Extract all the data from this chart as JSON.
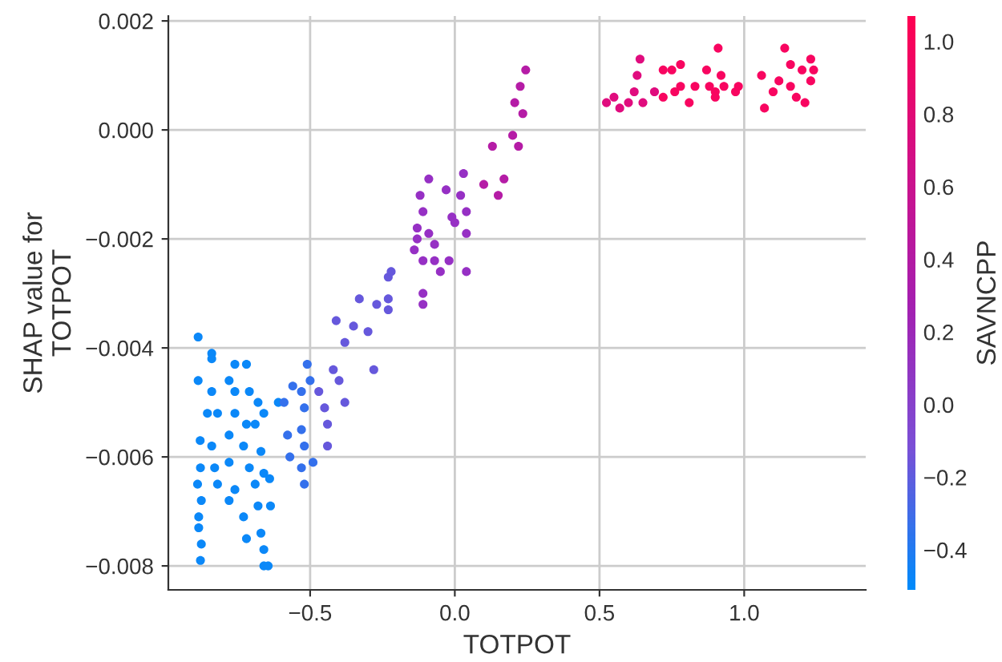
{
  "chart_data": {
    "type": "scatter",
    "xlabel": "TOTPOT",
    "ylabel": "SHAP value for\nTOTPOT",
    "clabel": "SAVNCPP",
    "xlim": [
      -0.99,
      1.42
    ],
    "ylim": [
      -0.00844,
      0.00209
    ],
    "xticks": [
      {
        "value": -0.5,
        "label": "−0.5"
      },
      {
        "value": 0.0,
        "label": "0.0"
      },
      {
        "value": 0.5,
        "label": "0.5"
      },
      {
        "value": 1.0,
        "label": "1.0"
      }
    ],
    "yticks": [
      {
        "value": -0.008,
        "label": "−0.008"
      },
      {
        "value": -0.006,
        "label": "−0.006"
      },
      {
        "value": -0.004,
        "label": "−0.004"
      },
      {
        "value": -0.002,
        "label": "−0.002"
      },
      {
        "value": 0.0,
        "label": "0.000"
      },
      {
        "value": 0.002,
        "label": "0.002"
      }
    ],
    "clim": [
      -0.51,
      1.07
    ],
    "cticks": [
      {
        "value": -0.4,
        "label": "−0.4"
      },
      {
        "value": -0.2,
        "label": "−0.2"
      },
      {
        "value": 0.0,
        "label": "0.0"
      },
      {
        "value": 0.2,
        "label": "0.2"
      },
      {
        "value": 0.4,
        "label": "0.4"
      },
      {
        "value": 0.6,
        "label": "0.6"
      },
      {
        "value": 0.8,
        "label": "0.8"
      },
      {
        "value": 1.0,
        "label": "1.0"
      }
    ],
    "grid": true,
    "marker": "circle",
    "series": [
      {
        "color": "#0b88f8",
        "x": [
          -0.887,
          -0.84,
          -0.84,
          -0.887,
          -0.76,
          -0.72,
          -0.78,
          -0.84,
          -0.76,
          -0.71,
          -0.68,
          -0.66,
          -0.61,
          -0.855,
          -0.82,
          -0.76,
          -0.72,
          -0.69,
          -0.88,
          -0.84,
          -0.78,
          -0.73,
          -0.67,
          -0.879,
          -0.83,
          -0.78,
          -0.71,
          -0.66,
          -0.889,
          -0.82,
          -0.76,
          -0.69,
          -0.64,
          -0.876,
          -0.885,
          -0.885,
          -0.876,
          -0.879,
          -0.73,
          -0.72,
          -0.67,
          -0.66,
          -0.66,
          -0.645,
          -0.637,
          -0.68,
          -0.78
        ],
        "values": [
          -0.0038,
          -0.0041,
          -0.0042,
          -0.0046,
          -0.0043,
          -0.0043,
          -0.0046,
          -0.0048,
          -0.0048,
          -0.0048,
          -0.005,
          -0.0052,
          -0.005,
          -0.0052,
          -0.0052,
          -0.0052,
          -0.0054,
          -0.0054,
          -0.0057,
          -0.0058,
          -0.0056,
          -0.0058,
          -0.0059,
          -0.0062,
          -0.0062,
          -0.0061,
          -0.0062,
          -0.0063,
          -0.0065,
          -0.0065,
          -0.0066,
          -0.0065,
          -0.0064,
          -0.0068,
          -0.0071,
          -0.0073,
          -0.0076,
          -0.0079,
          -0.0071,
          -0.0075,
          -0.0074,
          -0.0077,
          -0.008,
          -0.008,
          -0.0069,
          -0.0069,
          -0.0068
        ]
      },
      {
        "color": "#3470ec",
        "x": [
          -0.578,
          -0.57,
          -0.59,
          -0.56,
          -0.53,
          -0.52,
          -0.51,
          -0.53,
          -0.52,
          -0.53,
          -0.52,
          -0.49,
          -0.5
        ],
        "values": [
          -0.0056,
          -0.006,
          -0.005,
          -0.0047,
          -0.0048,
          -0.0051,
          -0.0043,
          -0.0055,
          -0.0058,
          -0.0062,
          -0.0065,
          -0.0061,
          -0.0046
        ]
      },
      {
        "color": "#6658dc",
        "x": [
          -0.47,
          -0.45,
          -0.44,
          -0.44,
          -0.42,
          -0.4,
          -0.38,
          -0.41,
          -0.38,
          -0.35,
          -0.3,
          -0.28,
          -0.27,
          -0.33,
          -0.23,
          -0.22,
          -0.23,
          -0.23
        ],
        "values": [
          -0.0048,
          -0.0051,
          -0.0054,
          -0.0058,
          -0.0044,
          -0.0046,
          -0.005,
          -0.0035,
          -0.0039,
          -0.0036,
          -0.0037,
          -0.0044,
          -0.0032,
          -0.0031,
          -0.0027,
          -0.0026,
          -0.0031,
          -0.0033
        ]
      },
      {
        "color": "#b51ca6",
        "x": [
          0.245,
          0.226,
          0.207,
          0.235,
          0.2,
          0.22,
          0.13,
          0.17,
          0.15,
          0.1
        ],
        "values": [
          0.0011,
          0.0008,
          0.0005,
          0.0003,
          -0.0001,
          -0.0003,
          -0.0003,
          -0.0009,
          -0.0012,
          -0.001
        ]
      },
      {
        "color": "#9630c4",
        "x": [
          0.03,
          0.02,
          0.04,
          0.0,
          0.04,
          -0.03,
          -0.01,
          -0.09,
          -0.12,
          -0.11,
          -0.13,
          -0.13,
          -0.09,
          -0.07,
          -0.14,
          -0.11,
          -0.07,
          -0.02,
          -0.05,
          0.04,
          -0.11,
          -0.11
        ],
        "values": [
          -0.0008,
          -0.0012,
          -0.0015,
          -0.0017,
          -0.0019,
          -0.0011,
          -0.0016,
          -0.0009,
          -0.0012,
          -0.0015,
          -0.0018,
          -0.002,
          -0.0019,
          -0.0021,
          -0.0022,
          -0.0024,
          -0.0024,
          -0.0024,
          -0.0026,
          -0.0026,
          -0.003,
          -0.0032
        ]
      },
      {
        "color": "#e00c7e",
        "x": [
          0.524,
          0.55,
          0.57,
          0.6,
          0.62,
          0.63,
          0.64,
          0.65,
          0.69
        ],
        "values": [
          0.0005,
          0.0006,
          0.0004,
          0.0005,
          0.0007,
          0.001,
          0.0013,
          0.0005,
          0.0007
        ]
      },
      {
        "color": "#f80560",
        "x": [
          0.72,
          0.75,
          0.72,
          0.76,
          0.78,
          0.78,
          0.81,
          0.83,
          0.87,
          0.88,
          0.9,
          0.91,
          0.92,
          0.93,
          0.97,
          0.98,
          0.9,
          1.06,
          1.07,
          1.1,
          1.12,
          1.14,
          1.16,
          1.16,
          1.18,
          1.2,
          1.21,
          1.23,
          1.24,
          1.23
        ],
        "values": [
          0.0011,
          0.0011,
          0.0006,
          0.0007,
          0.0012,
          0.0008,
          0.0005,
          0.0008,
          0.0011,
          0.0008,
          0.0007,
          0.0015,
          0.001,
          0.0008,
          0.0007,
          0.0008,
          0.0006,
          0.001,
          0.0004,
          0.0007,
          0.0009,
          0.0015,
          0.0008,
          0.0012,
          0.0006,
          0.0011,
          0.0005,
          0.0013,
          0.0011,
          0.0009
        ]
      }
    ]
  }
}
